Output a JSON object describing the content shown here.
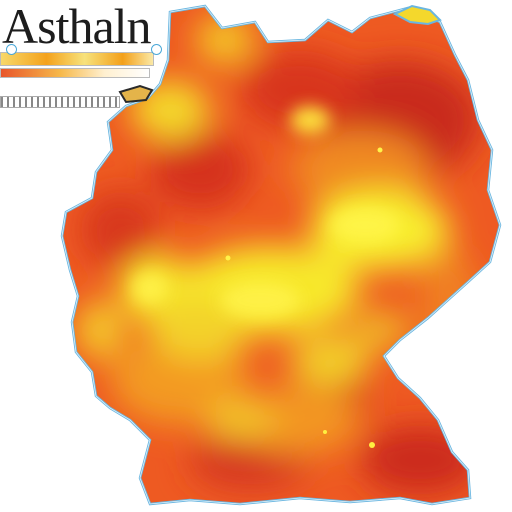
{
  "map": {
    "title": "Asthaln",
    "colors": {
      "low": "#f6f02c",
      "mid": "#f49a1e",
      "high": "#e8321e",
      "peak": "#c8201e",
      "border": "#4aa8d8"
    },
    "legend": {
      "gradient": [
        "#f7d86a",
        "#f4a21c",
        "#f7e27c",
        "#f3a01a"
      ]
    }
  }
}
